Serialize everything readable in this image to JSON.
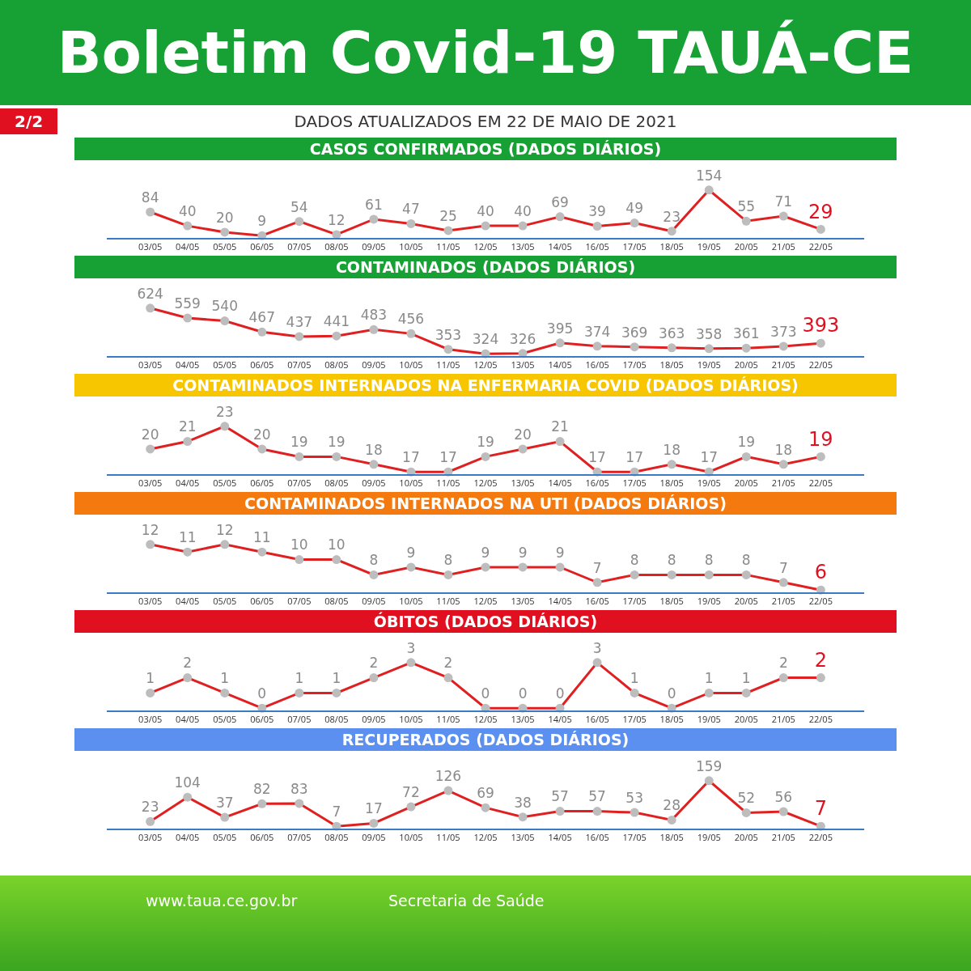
{
  "chart_data": [
    {
      "type": "line",
      "title": "Boletim Covid-19 TAUÁ-CE",
      "subtitle": "DADOS ATUALIZADOS EM 22 DE MAIO DE 2021",
      "xlabel": "CASOS CONFIRMADOS  (DADOS DIÁRIOS)",
      "annotations": [
        "2/2"
      ],
      "categories": [
        "03/05",
        "04/05",
        "05/05",
        "06/05",
        "07/05",
        "08/05",
        "09/05",
        "10/05",
        "11/05",
        "12/05",
        "13/05",
        "14/05",
        "16/05",
        "17/05",
        "18/05",
        "19/05",
        "20/05",
        "21/05",
        "22/05"
      ],
      "values": [
        84,
        40,
        20,
        9,
        54,
        12,
        61,
        47,
        25,
        40,
        40,
        69,
        39,
        49,
        23,
        154,
        55,
        71,
        29
      ],
      "color": "#e02020",
      "marker": "circle",
      "data_labels": true
    },
    {
      "type": "line",
      "xlabel": "CONTAMINADOS  (DADOS DIÁRIOS)",
      "categories": [
        "03/05",
        "04/05",
        "05/05",
        "06/05",
        "07/05",
        "08/05",
        "09/05",
        "10/05",
        "11/05",
        "12/05",
        "13/05",
        "14/05",
        "16/05",
        "17/05",
        "18/05",
        "19/05",
        "20/05",
        "21/05",
        "22/05"
      ],
      "values": [
        624,
        559,
        540,
        467,
        437,
        441,
        483,
        456,
        353,
        324,
        326,
        395,
        374,
        369,
        363,
        358,
        361,
        373,
        393
      ],
      "color": "#e02020",
      "marker": "circle",
      "data_labels": true
    },
    {
      "type": "line",
      "xlabel": "CONTAMINADOS INTERNADOS NA ENFERMARIA COVID  (DADOS DIÁRIOS)",
      "categories": [
        "03/05",
        "04/05",
        "05/05",
        "06/05",
        "07/05",
        "08/05",
        "09/05",
        "10/05",
        "11/05",
        "12/05",
        "13/05",
        "14/05",
        "16/05",
        "17/05",
        "18/05",
        "19/05",
        "20/05",
        "21/05",
        "22/05"
      ],
      "values": [
        20,
        21,
        23,
        20,
        19,
        19,
        18,
        17,
        17,
        19,
        20,
        21,
        17,
        17,
        18,
        17,
        19,
        18,
        19
      ],
      "color": "#e02020",
      "marker": "circle",
      "data_labels": true
    },
    {
      "type": "line",
      "xlabel": "CONTAMINADOS INTERNADOS NA UTI  (DADOS DIÁRIOS)",
      "categories": [
        "03/05",
        "04/05",
        "05/05",
        "06/05",
        "07/05",
        "08/05",
        "09/05",
        "10/05",
        "11/05",
        "12/05",
        "13/05",
        "14/05",
        "16/05",
        "17/05",
        "18/05",
        "19/05",
        "20/05",
        "21/05",
        "22/05"
      ],
      "values": [
        12,
        11,
        12,
        11,
        10,
        10,
        8,
        9,
        8,
        9,
        9,
        9,
        7,
        8,
        8,
        8,
        8,
        7,
        6
      ],
      "color": "#e02020",
      "marker": "circle",
      "data_labels": true
    },
    {
      "type": "line",
      "xlabel": "ÓBITOS  (DADOS DIÁRIOS)",
      "categories": [
        "03/05",
        "04/05",
        "05/05",
        "06/05",
        "07/05",
        "08/05",
        "09/05",
        "10/05",
        "11/05",
        "12/05",
        "13/05",
        "14/05",
        "16/05",
        "17/05",
        "18/05",
        "19/05",
        "20/05",
        "21/05",
        "22/05"
      ],
      "values": [
        1,
        2,
        1,
        0,
        1,
        1,
        2,
        3,
        2,
        0,
        0,
        0,
        3,
        1,
        0,
        1,
        1,
        2,
        2
      ],
      "color": "#e02020",
      "marker": "circle",
      "data_labels": true
    },
    {
      "type": "line",
      "xlabel": "RECUPERADOS (DADOS DIÁRIOS)",
      "annotations": [
        "www.taua.ce.gov.br",
        "Secretaria de Saúde"
      ],
      "categories": [
        "03/05",
        "04/05",
        "05/05",
        "06/05",
        "07/05",
        "08/05",
        "09/05",
        "10/05",
        "11/05",
        "12/05",
        "13/05",
        "14/05",
        "16/05",
        "17/05",
        "18/05",
        "19/05",
        "20/05",
        "21/05",
        "22/05"
      ],
      "values": [
        23,
        104,
        37,
        82,
        83,
        7,
        17,
        72,
        126,
        69,
        38,
        57,
        57,
        53,
        28,
        159,
        52,
        56,
        7
      ],
      "color": "#e02020",
      "marker": "circle",
      "data_labels": true
    }
  ]
}
